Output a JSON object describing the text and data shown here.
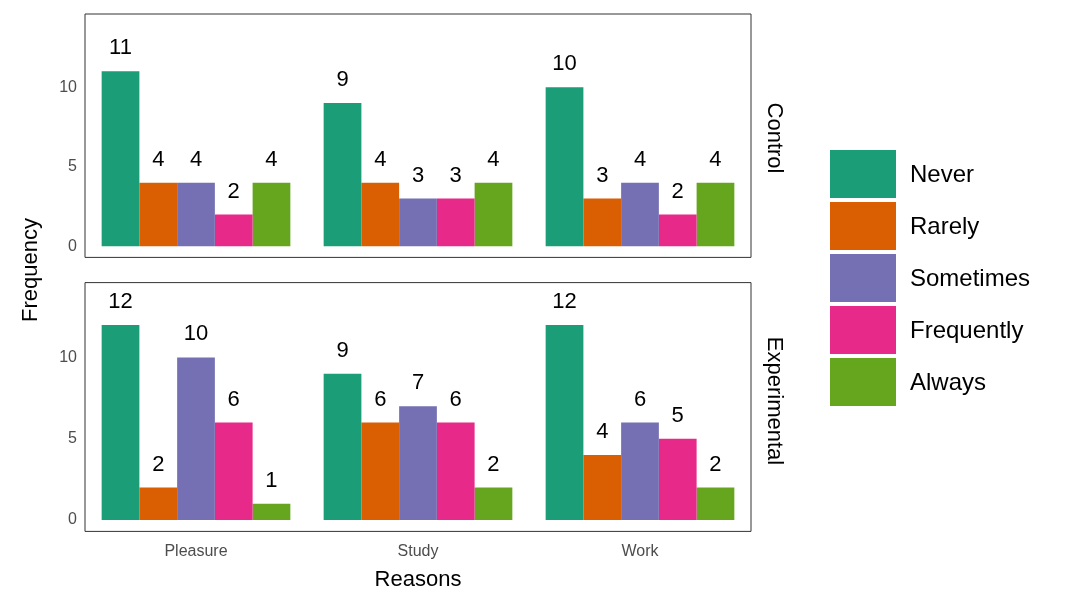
{
  "chart_data": [
    {
      "type": "bar",
      "annotations": [
        "Control"
      ],
      "ylabel": "Frequency",
      "categories": [
        "Pleasure",
        "Study",
        "Work"
      ],
      "series": [
        {
          "name": "Never",
          "color": "#1b9e77",
          "values": [
            11,
            9,
            10
          ]
        },
        {
          "name": "Rarely",
          "color": "#d95f02",
          "values": [
            4,
            4,
            3
          ]
        },
        {
          "name": "Sometimes",
          "color": "#7570b3",
          "values": [
            4,
            3,
            4
          ]
        },
        {
          "name": "Frequently",
          "color": "#e7298a",
          "values": [
            2,
            3,
            2
          ]
        },
        {
          "name": "Always",
          "color": "#66a61e",
          "values": [
            4,
            4,
            4
          ]
        }
      ],
      "ylim": [
        -0.7,
        14.6
      ],
      "yticks": [
        0,
        5,
        10
      ],
      "grid": false,
      "legend": "right",
      "data_labels": true,
      "tick_labels": "y"
    },
    {
      "type": "bar",
      "annotations": [
        "Experimental"
      ],
      "xlabel": "Reasons",
      "categories": [
        "Pleasure",
        "Study",
        "Work"
      ],
      "series": [
        {
          "name": "Never",
          "color": "#1b9e77",
          "values": [
            12,
            9,
            12
          ]
        },
        {
          "name": "Rarely",
          "color": "#d95f02",
          "values": [
            2,
            6,
            4
          ]
        },
        {
          "name": "Sometimes",
          "color": "#7570b3",
          "values": [
            10,
            7,
            6
          ]
        },
        {
          "name": "Frequently",
          "color": "#e7298a",
          "values": [
            6,
            6,
            5
          ]
        },
        {
          "name": "Always",
          "color": "#66a61e",
          "values": [
            1,
            2,
            2
          ]
        }
      ],
      "ylim": [
        -0.7,
        14.6
      ],
      "yticks": [
        0,
        5,
        10
      ],
      "grid": false,
      "data_labels": true
    }
  ]
}
